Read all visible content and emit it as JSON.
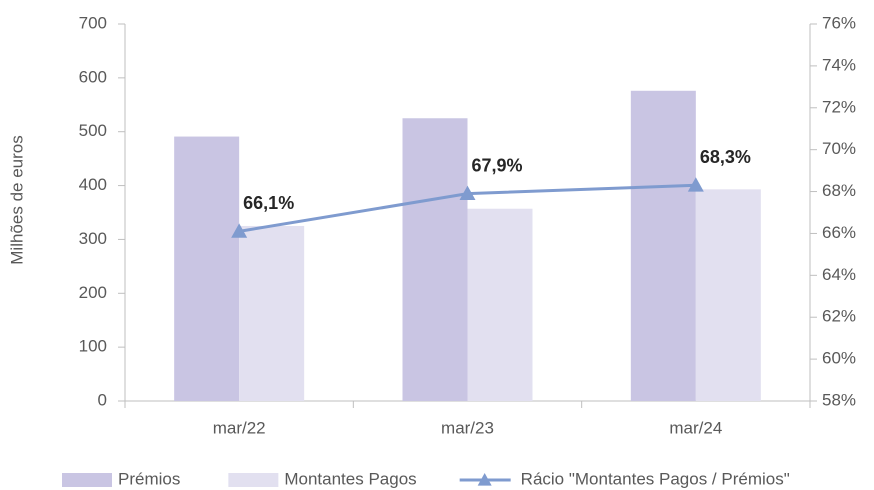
{
  "chart_data": {
    "type": "bar",
    "categories": [
      "mar/22",
      "mar/23",
      "mar/24"
    ],
    "y_label": "Milhões de euros",
    "ylim": [
      0,
      700
    ],
    "yticks": [
      0,
      100,
      200,
      300,
      400,
      500,
      600,
      700
    ],
    "y2lim": [
      58,
      76
    ],
    "y2ticks": [
      {
        "value": 58,
        "label": "58%"
      },
      {
        "value": 60,
        "label": "60%"
      },
      {
        "value": 62,
        "label": "62%"
      },
      {
        "value": 64,
        "label": "64%"
      },
      {
        "value": 66,
        "label": "66%"
      },
      {
        "value": 68,
        "label": "68%"
      },
      {
        "value": 70,
        "label": "70%"
      },
      {
        "value": 72,
        "label": "72%"
      },
      {
        "value": 74,
        "label": "74%"
      },
      {
        "value": 76,
        "label": "76%"
      }
    ],
    "grid": false,
    "legend": "bottom",
    "series": [
      {
        "name": "Prémios",
        "type": "bar",
        "color": "#c9c5e3",
        "values": [
          491,
          525,
          576
        ]
      },
      {
        "name": "Montantes Pagos",
        "type": "bar",
        "color": "#e2e0f0",
        "values": [
          325,
          357,
          393
        ]
      },
      {
        "name": "Rácio \"Montantes Pagos / Prémios\"",
        "type": "line",
        "axis": "y2",
        "color": "#7f9bcf",
        "values": [
          66.1,
          67.9,
          68.3
        ],
        "value_labels": [
          "66,1%",
          "67,9%",
          "68,3%"
        ]
      }
    ]
  }
}
